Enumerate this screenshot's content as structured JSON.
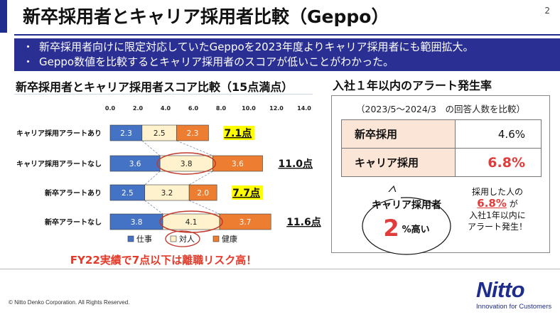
{
  "slide": {
    "title": "新卒採用者とキャリア採用者比較（Geppo）",
    "page_number": "2",
    "bullets": [
      "新卒採用者向けに限定対応していたGeppoを2023年度よりキャリア採用者にも範囲拡大。",
      "Geppo数値を比較するとキャリア採用者のスコアが低いことがわかった。"
    ],
    "note": "FY22実績で7点以下は離職リスク高！"
  },
  "chart_data": {
    "type": "bar",
    "orientation": "horizontal",
    "stacked": true,
    "title": "新卒採用者とキャリア採用者スコア比較（15点満点）",
    "xlim": [
      0,
      14
    ],
    "xticks": [
      "0.0",
      "2.0",
      "4.0",
      "6.0",
      "8.0",
      "10.0",
      "12.0",
      "14.0"
    ],
    "categories": [
      "キャリア採用アラートあり",
      "キャリア採用アラートなし",
      "新卒アラートあり",
      "新卒アラートなし"
    ],
    "series": [
      {
        "name": "仕事",
        "color": "#4472c4",
        "values": [
          2.3,
          3.6,
          2.5,
          3.8
        ],
        "labels": [
          "2.3",
          "3.6",
          "2.5",
          "3.8"
        ]
      },
      {
        "name": "対人",
        "color": "#fff2cc",
        "values": [
          2.5,
          3.8,
          3.2,
          4.1
        ],
        "labels": [
          "2.5",
          "3.8",
          "3.2",
          "4.1"
        ]
      },
      {
        "name": "健康",
        "color": "#ed7d31",
        "values": [
          2.3,
          3.6,
          2.0,
          3.7
        ],
        "labels": [
          "2.3",
          "3.6",
          "2.0",
          "3.7"
        ]
      }
    ],
    "totals": [
      "7.1点",
      "11.0点",
      "7.7点",
      "11.6点"
    ],
    "total_highlight": [
      true,
      false,
      true,
      false
    ],
    "legend_position": "bottom",
    "circled": {
      "category_indexes": [
        1,
        3
      ],
      "series_index": 1
    }
  },
  "alert_panel": {
    "title": "入社１年以内のアラート発生率",
    "subtitle": "（2023/5～2024/3　の回答人数を比較）",
    "rows": [
      {
        "label": "新卒採用",
        "value": "4.6%"
      },
      {
        "label": "キャリア採用",
        "value": "6.8%"
      }
    ]
  },
  "callout": {
    "line1": "キャリア採用者",
    "number": "2",
    "unit": "%高い"
  },
  "side_note": {
    "line1": "採用した人の",
    "highlight": "6.8%",
    "highlight_suffix": "が",
    "line2": "入社1年以内に",
    "line3": "アラート発生！"
  },
  "footer": {
    "copyright": "© Nitto Denko Corporation. All Rights Reserved.",
    "logo": "Nitto",
    "tagline": "Innovation for Customers"
  },
  "colors": {
    "brand": "#1f2d8c",
    "highlight_red": "#e03c3c",
    "total_highlight": "#ffff00"
  }
}
